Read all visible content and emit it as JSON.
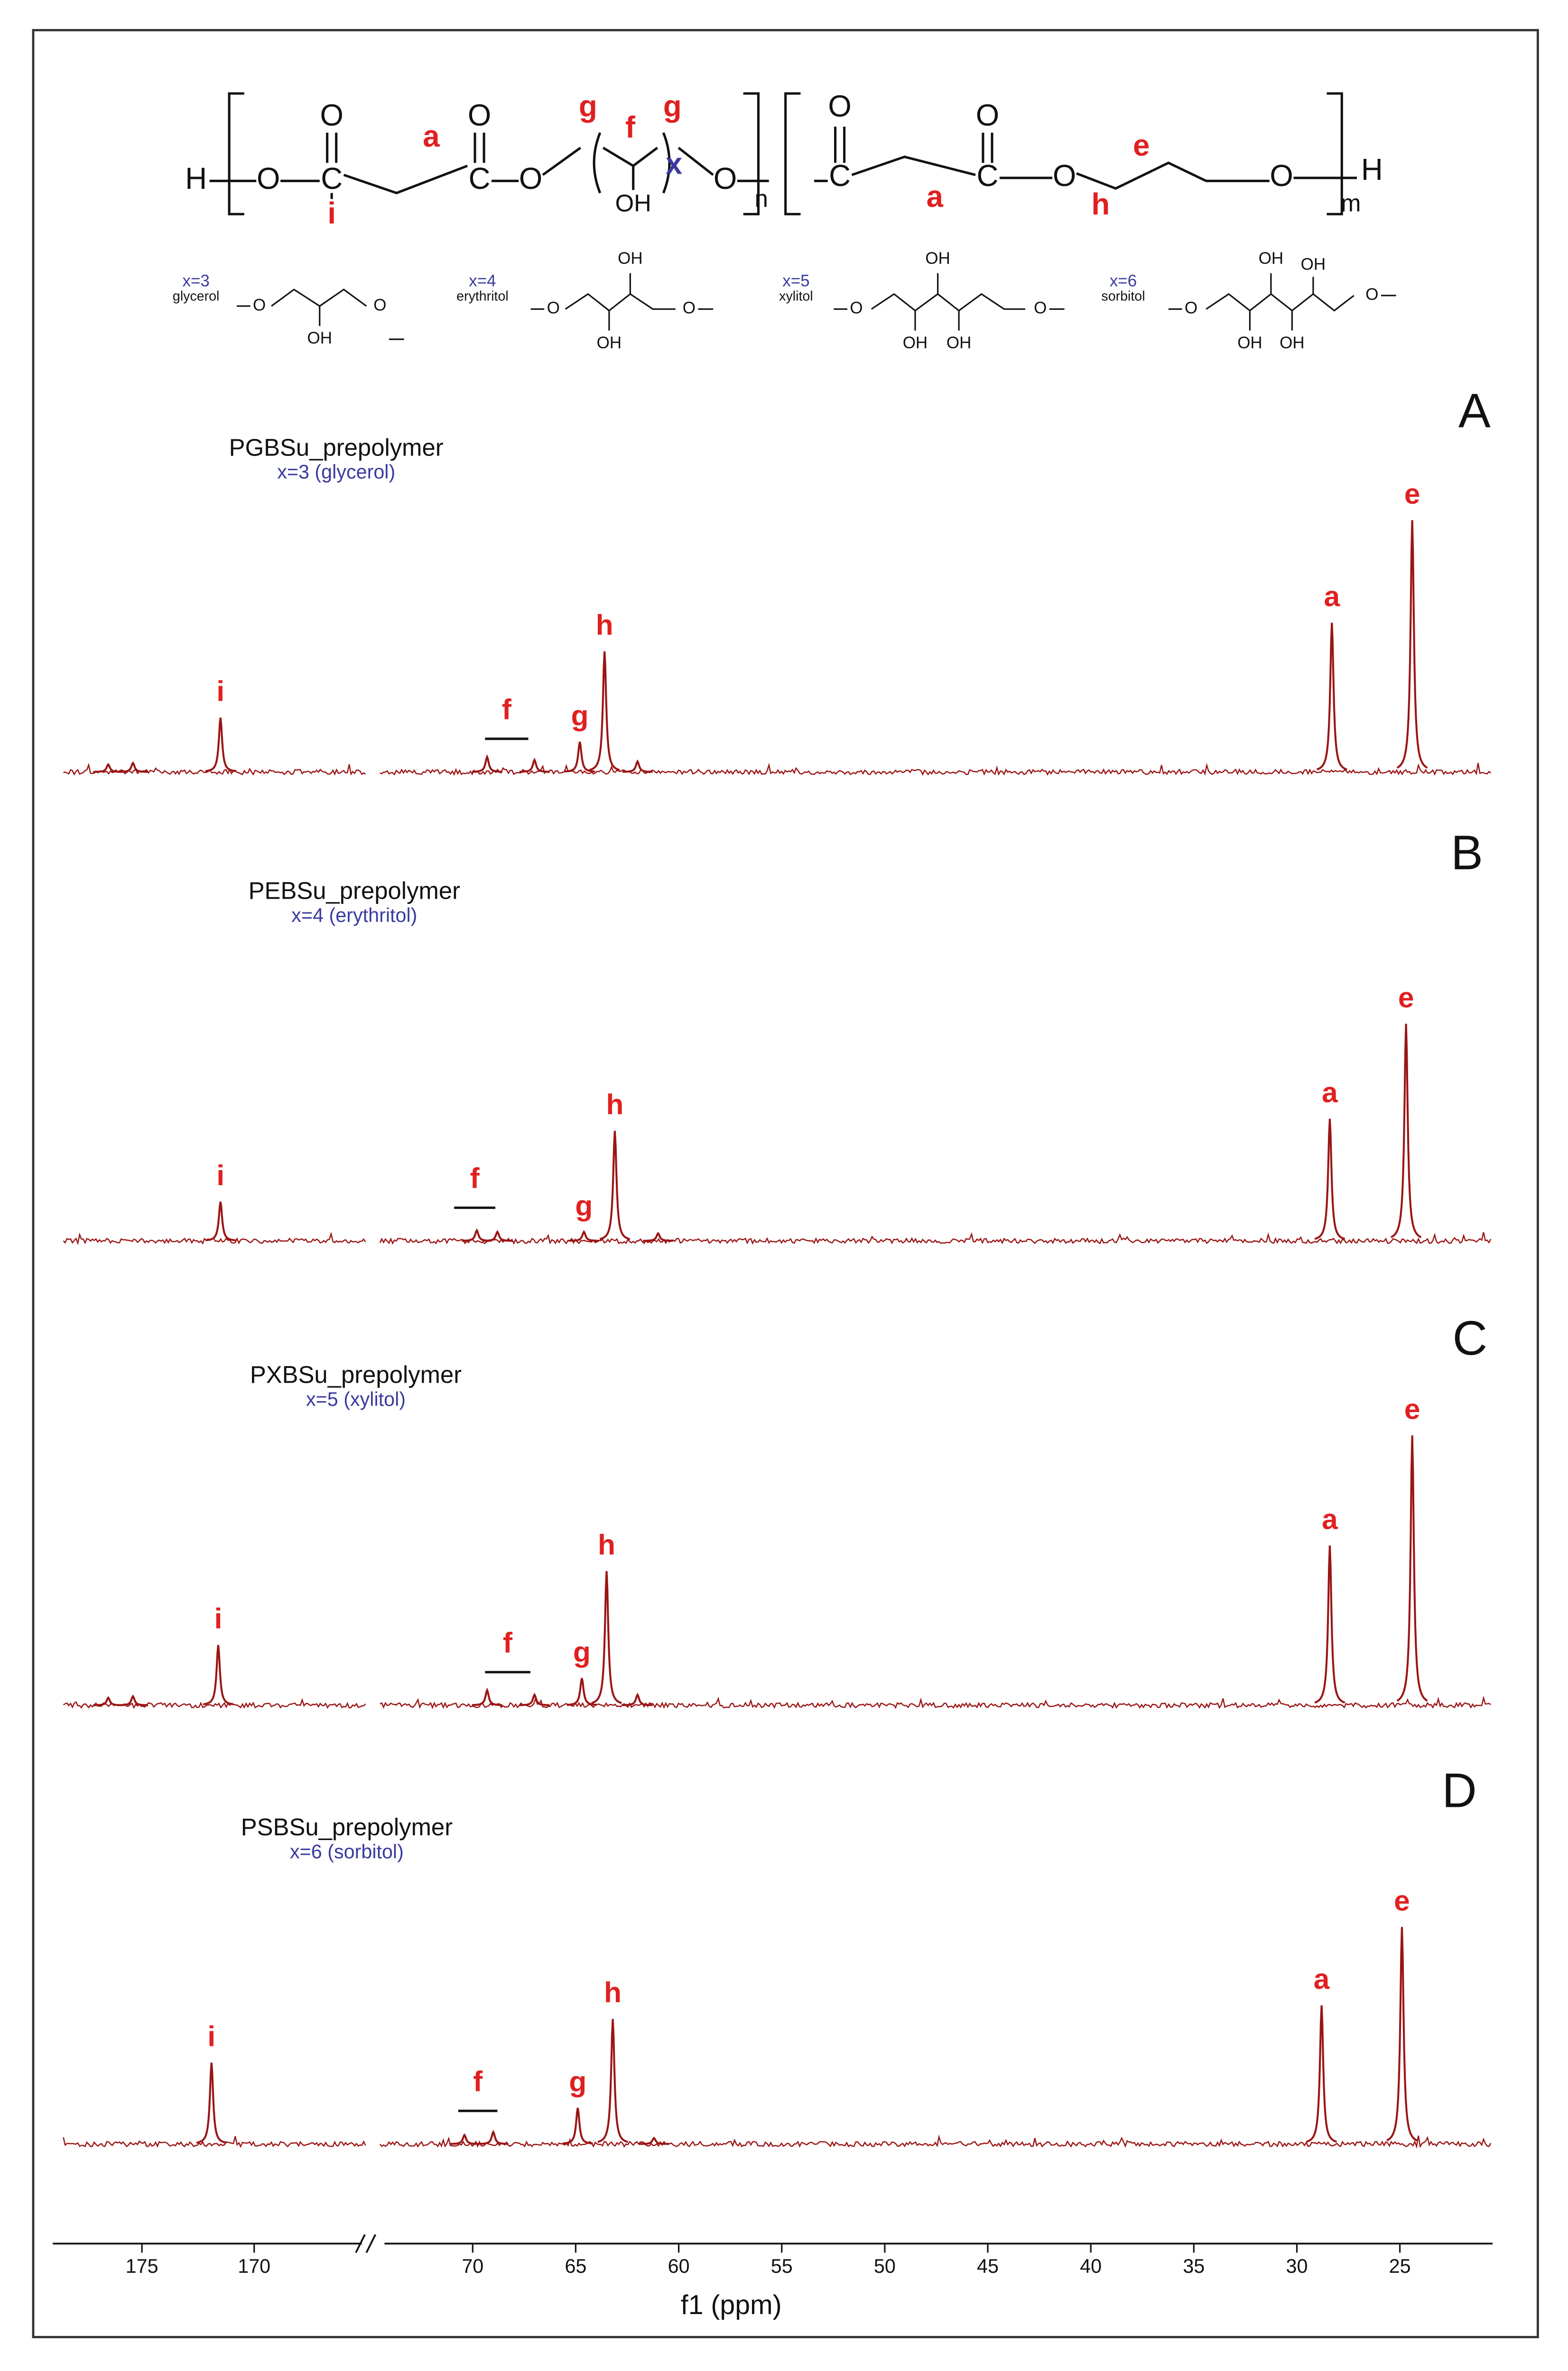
{
  "structure": {
    "atoms": [
      "H",
      "O",
      "C",
      "O",
      "i",
      "a",
      "C",
      "O",
      "O",
      "g",
      "f",
      "g",
      "OH",
      "x",
      "O",
      "n",
      "C",
      "O",
      "a",
      "C",
      "O",
      "O",
      "h",
      "e",
      "O",
      "H",
      "m"
    ]
  },
  "alditols": [
    {
      "x": "x=3",
      "name": "glycerol",
      "atoms": [
        "O",
        "O",
        "OH"
      ]
    },
    {
      "x": "x=4",
      "name": "erythritol",
      "atoms": [
        "O",
        "OH",
        "OH",
        "O"
      ]
    },
    {
      "x": "x=5",
      "name": "xylitol",
      "atoms": [
        "O",
        "OH",
        "OH",
        "OH",
        "O"
      ]
    },
    {
      "x": "x=6",
      "name": "sorbitol",
      "atoms": [
        "O",
        "OH",
        "OH",
        "OH",
        "OH",
        "O"
      ]
    }
  ],
  "chart_data": [
    {
      "type": "nmr",
      "panel": "A",
      "title": "PGBSu_prepolymer",
      "subtitle": "x=3 (glycerol)",
      "color": "#9b1515",
      "peaks": {
        "labels": [
          null,
          null,
          "i",
          null,
          null,
          "g",
          "h",
          null,
          "a",
          "e"
        ],
        "ppm": [
          176.5,
          175.4,
          171.5,
          69.3,
          67.0,
          64.8,
          63.6,
          62.0,
          28.3,
          24.4
        ],
        "height": [
          5,
          6,
          36,
          10,
          8,
          20,
          80,
          7,
          99,
          167
        ]
      },
      "bracket": {
        "label": "f",
        "ppm": [
          69.4,
          67.3
        ]
      }
    },
    {
      "type": "nmr",
      "panel": "B",
      "title": "PEBSu_prepolymer",
      "subtitle": "x=4 (erythritol)",
      "color": "#9b1515",
      "peaks": {
        "labels": [
          "i",
          null,
          null,
          "g",
          "h",
          null,
          "a",
          "e"
        ],
        "ppm": [
          171.5,
          69.8,
          68.8,
          64.6,
          63.1,
          61.0,
          28.4,
          24.7
        ],
        "height": [
          26,
          7,
          6,
          6,
          73,
          5,
          81,
          144
        ]
      },
      "bracket": {
        "label": "f",
        "ppm": [
          70.9,
          68.9
        ]
      }
    },
    {
      "type": "nmr",
      "panel": "C",
      "title": "PXBSu_prepolymer",
      "subtitle": "x=5 (xylitol)",
      "color": "#9b1515",
      "peaks": {
        "labels": [
          null,
          null,
          "i",
          null,
          null,
          "g",
          "h",
          null,
          "a",
          "e"
        ],
        "ppm": [
          176.5,
          175.4,
          171.6,
          69.3,
          67.0,
          64.7,
          63.5,
          62.0,
          28.4,
          24.4
        ],
        "height": [
          5,
          6,
          40,
          10,
          7,
          18,
          89,
          7,
          106,
          179
        ]
      },
      "bracket": {
        "label": "f",
        "ppm": [
          69.4,
          67.2
        ]
      }
    },
    {
      "type": "nmr",
      "panel": "D",
      "title": "PSBSu_prepolymer",
      "subtitle": "x=6 (sorbitol)",
      "color": "#9b1515",
      "peaks": {
        "labels": [
          "i",
          null,
          null,
          "g",
          "h",
          null,
          "a",
          "e"
        ],
        "ppm": [
          171.9,
          70.4,
          69.0,
          64.9,
          63.2,
          61.2,
          28.8,
          24.9
        ],
        "height": [
          54,
          6,
          8,
          24,
          83,
          4,
          92,
          144
        ]
      },
      "bracket": {
        "label": "f",
        "ppm": [
          70.7,
          68.8
        ]
      }
    }
  ],
  "x_axis": {
    "xlabel": "f1 (ppm)",
    "xlim": [
      [
        178.5,
        165
      ],
      [
        74.5,
        20.5
      ]
    ],
    "xticks": [
      175,
      170,
      70,
      65,
      60,
      55,
      50,
      45,
      40,
      35,
      30,
      25
    ]
  }
}
